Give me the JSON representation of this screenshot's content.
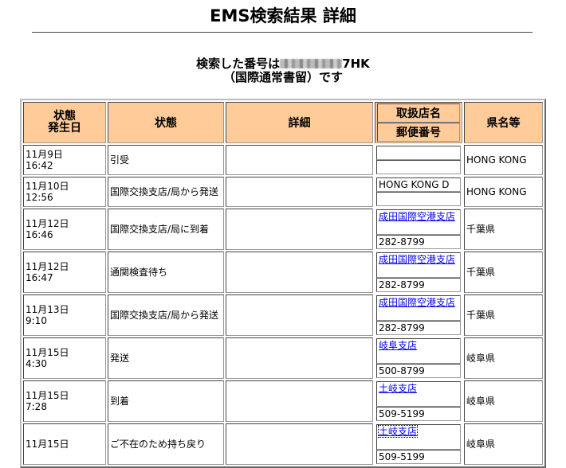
{
  "page_title": "EMS検索結果 詳細",
  "search": {
    "line1_prefix": "検索した番号は",
    "number_suffix": "7HK",
    "line2": "（国際通常書留）です"
  },
  "header": {
    "date": "状態\n発生日",
    "status": "状態",
    "detail": "詳細",
    "office": "取扱店名",
    "postal": "郵便番号",
    "prefecture": "県名等"
  },
  "colors": {
    "header_bg": "#ffcc99",
    "link": "#0000ee"
  },
  "rows": [
    {
      "date": "11月9日",
      "time": "16:42",
      "status": "引受",
      "detail": "",
      "office": "",
      "office_link": false,
      "postal": "",
      "prefecture": "HONG KONG"
    },
    {
      "date": "11月10日",
      "time": "12:56",
      "status": "国際交換支店/局から発送",
      "detail": "",
      "office": "HONG KONG D",
      "office_link": false,
      "postal": "",
      "prefecture": "HONG KONG"
    },
    {
      "date": "11月12日",
      "time": "16:46",
      "status": "国際交換支店/局に到着",
      "detail": "",
      "office": "成田国際空港支店",
      "office_link": true,
      "postal": "282-8799",
      "prefecture": "千葉県"
    },
    {
      "date": "11月12日",
      "time": "16:47",
      "status": "通関検査待ち",
      "detail": "",
      "office": "成田国際空港支店",
      "office_link": true,
      "postal": "282-8799",
      "prefecture": "千葉県"
    },
    {
      "date": "11月13日",
      "time": "9:10",
      "status": "国際交換支店/局から発送",
      "detail": "",
      "office": "成田国際空港支店",
      "office_link": true,
      "postal": "282-8799",
      "prefecture": "千葉県"
    },
    {
      "date": "11月15日",
      "time": "4:30",
      "status": "発送",
      "detail": "",
      "office": "岐阜支店",
      "office_link": true,
      "postal": "500-8799",
      "prefecture": "岐阜県"
    },
    {
      "date": "11月15日",
      "time": "7:28",
      "status": "到着",
      "detail": "",
      "office": "土岐支店",
      "office_link": true,
      "postal": "509-5199",
      "prefecture": "岐阜県"
    },
    {
      "date": "11月15日",
      "time": "",
      "status": "ご不在のため持ち戻り",
      "detail": "",
      "office": "土岐支店",
      "office_link": true,
      "postal": "509-5199",
      "prefecture": "岐阜県"
    }
  ]
}
